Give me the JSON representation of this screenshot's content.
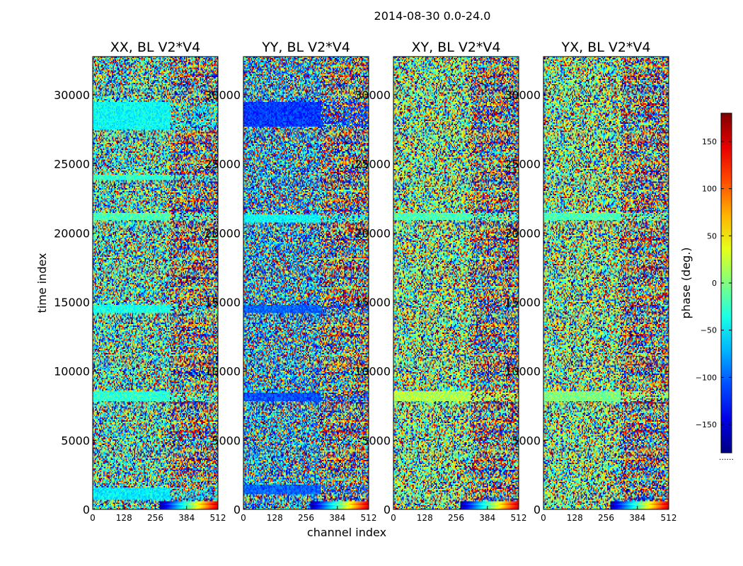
{
  "chart_data": {
    "type": "heatmap",
    "title": "2014-08-30 0.0-24.0",
    "xlabel": "channel index",
    "ylabel": "time index",
    "xlim": [
      0,
      512
    ],
    "ylim": [
      0,
      32768
    ],
    "x_ticks": [
      "0",
      "128",
      "256",
      "384",
      "512"
    ],
    "y_ticks": [
      "0",
      "5000",
      "10000",
      "15000",
      "20000",
      "25000",
      "30000"
    ],
    "y_tick_values": [
      0,
      5000,
      10000,
      15000,
      20000,
      25000,
      30000
    ],
    "x_tick_values": [
      0,
      128,
      256,
      384,
      512
    ],
    "colormap": "jet",
    "panels": [
      {
        "title": "XX, BL V2*V4",
        "bias": 0.42,
        "bands": [
          [
            700,
            1600,
            0.36
          ],
          [
            7800,
            8500,
            0.42
          ],
          [
            14200,
            14800,
            0.4
          ],
          [
            21000,
            21400,
            0.45
          ],
          [
            23800,
            24200,
            0.42
          ],
          [
            27500,
            29500,
            0.38
          ]
        ]
      },
      {
        "title": "YY, BL V2*V4",
        "bias": 0.3,
        "bands": [
          [
            1100,
            1800,
            0.22
          ],
          [
            7800,
            8400,
            0.2
          ],
          [
            14200,
            14800,
            0.22
          ],
          [
            20800,
            21300,
            0.38
          ],
          [
            27700,
            29500,
            0.18
          ]
        ]
      },
      {
        "title": "XY, BL V2*V4",
        "bias": 0.5,
        "bands": [
          [
            7800,
            8500,
            0.55
          ],
          [
            21000,
            21400,
            0.45
          ]
        ]
      },
      {
        "title": "YX, BL V2*V4",
        "bias": 0.5,
        "bands": [
          [
            7800,
            8500,
            0.5
          ],
          [
            21000,
            21400,
            0.45
          ]
        ]
      }
    ],
    "colorbar": {
      "label": "phase (deg.)",
      "range": [
        -180,
        180
      ],
      "ticks": [
        "150",
        "100",
        "50",
        "0",
        "−50",
        "−100",
        "−150"
      ],
      "tick_values": [
        150,
        100,
        50,
        0,
        -50,
        -100,
        -150
      ],
      "footer": "......"
    }
  }
}
